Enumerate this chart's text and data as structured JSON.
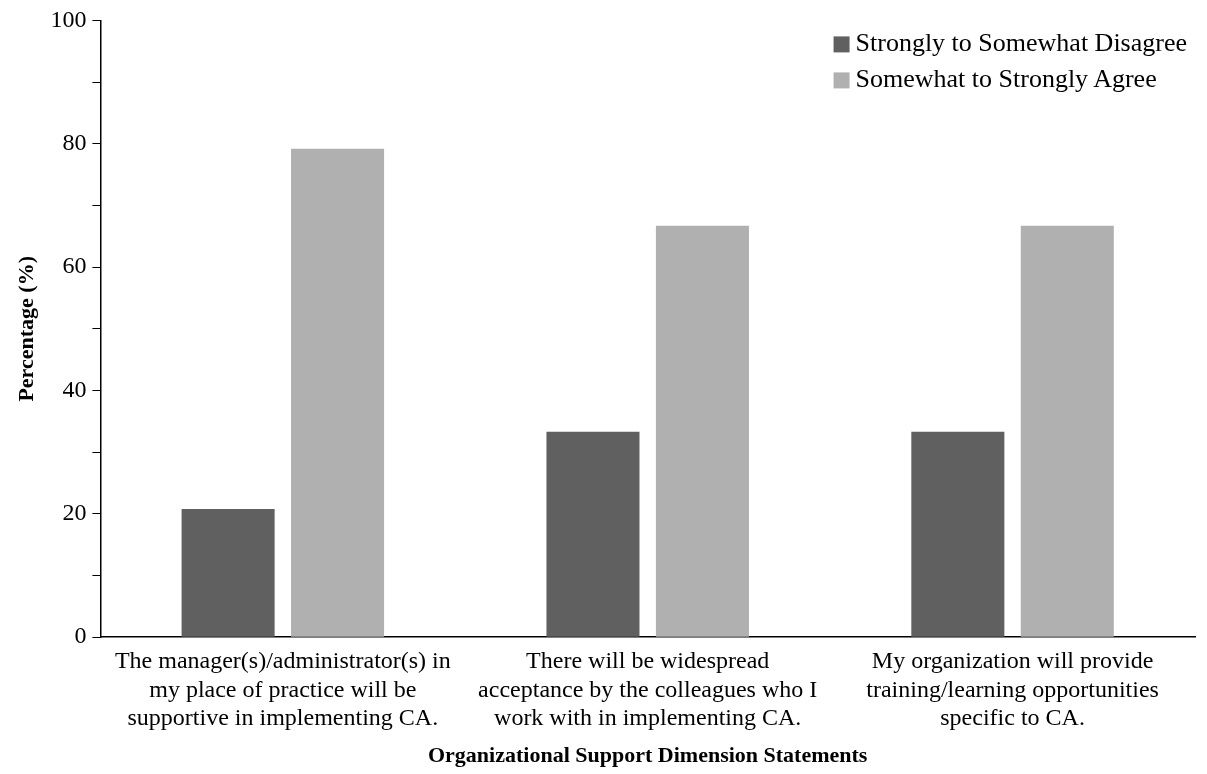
{
  "chart_data": {
    "type": "bar",
    "xlabel": "Organizational Support Dimension Statements",
    "ylabel": "Percentage (%)",
    "categories": [
      "The manager(s)/administrator(s) in my place of practice will be supportive in implementing CA.",
      "There will be widespread acceptance by the colleagues who I work with in implementing CA.",
      "My organization will provide training/learning opportunities specific to CA."
    ],
    "series": [
      {
        "name": "Strongly to Somewhat Disagree",
        "color": "#606060",
        "values": [
          20.8,
          33.3,
          33.3
        ]
      },
      {
        "name": "Somewhat to Strongly Agree",
        "color": "#b0b0b0",
        "values": [
          79.2,
          66.7,
          66.7
        ]
      }
    ],
    "ylim": [
      0,
      100
    ],
    "yticks": [
      0,
      {
        "value": 10,
        "label": null
      },
      20,
      {
        "value": 30,
        "label": null
      },
      40,
      {
        "value": 50,
        "label": null
      },
      60,
      {
        "value": 70,
        "label": null
      },
      80,
      {
        "value": 90,
        "label": null
      },
      100
    ],
    "grid": false,
    "legend": "top right"
  }
}
